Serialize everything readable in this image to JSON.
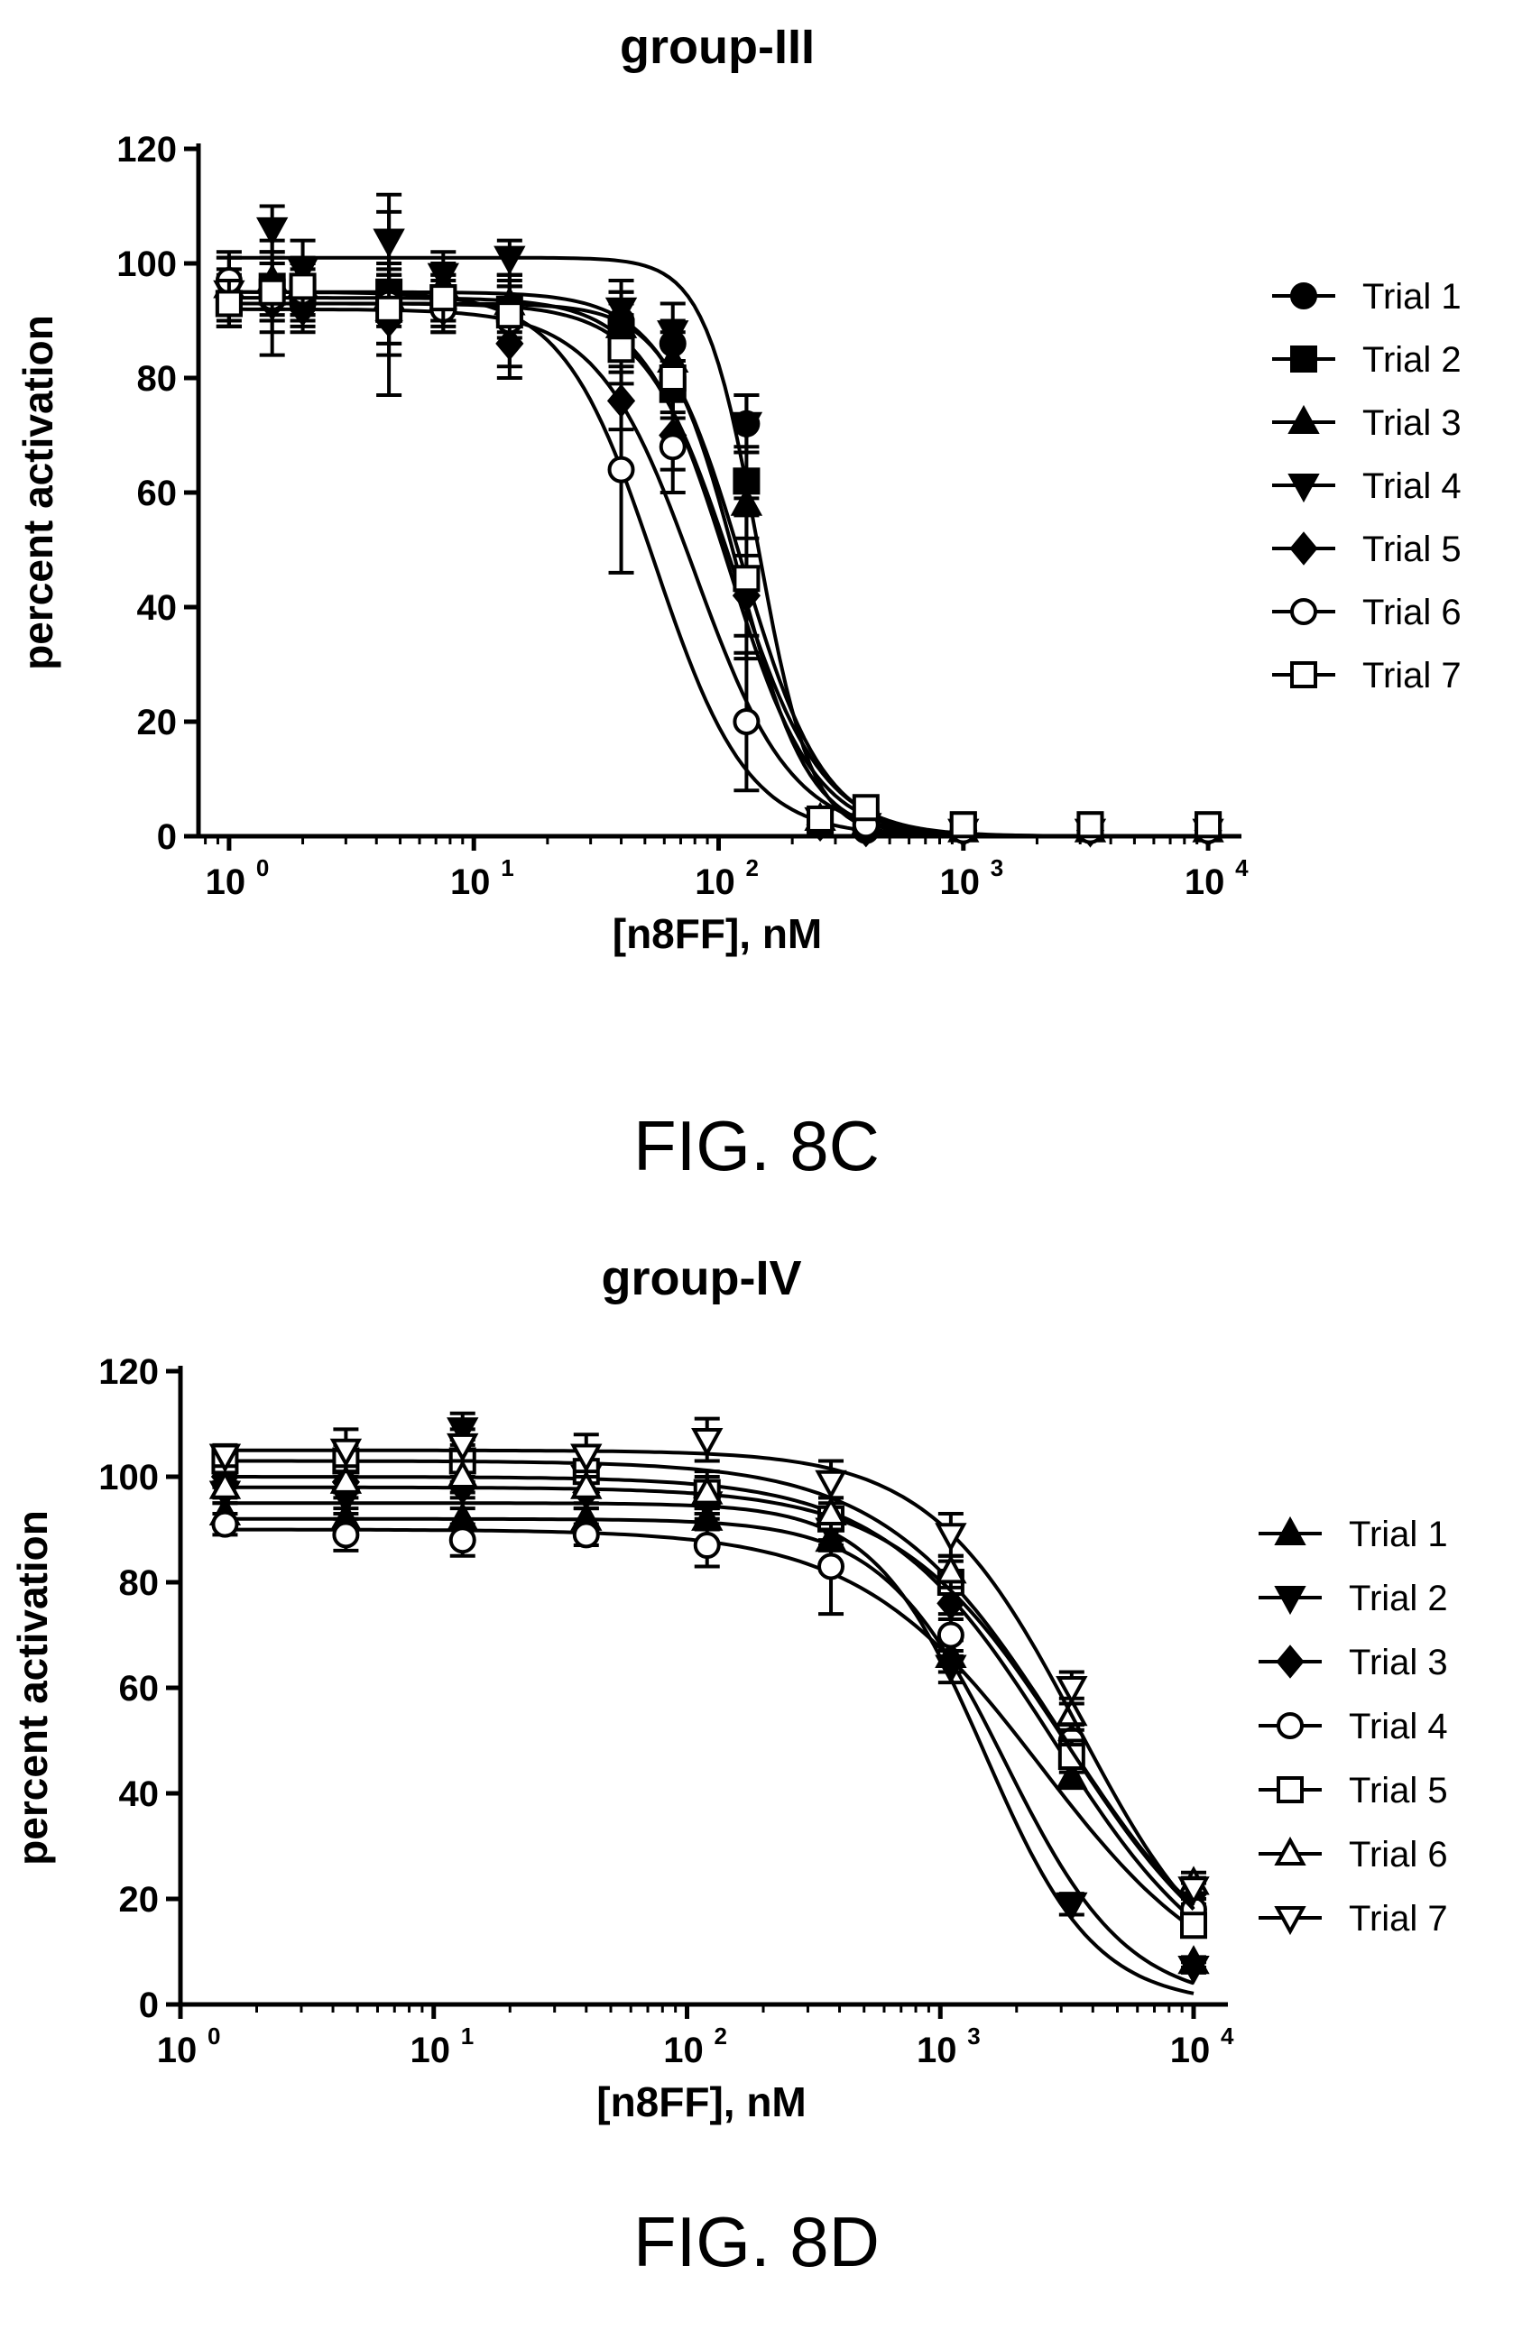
{
  "figures": [
    {
      "caption": "FIG. 8C"
    },
    {
      "caption": "FIG. 8D"
    }
  ],
  "chart_data": [
    {
      "type": "scatter",
      "title": "group-III",
      "xlabel": "[n8FF], nM",
      "ylabel": "percent activation",
      "xscale": "log",
      "xlim": [
        0.75,
        13000
      ],
      "ylim": [
        0,
        120
      ],
      "x_ticks": [
        {
          "base": "10",
          "exp": "0",
          "value": 1
        },
        {
          "base": "10",
          "exp": "1",
          "value": 10
        },
        {
          "base": "10",
          "exp": "2",
          "value": 100
        },
        {
          "base": "10",
          "exp": "3",
          "value": 1000
        },
        {
          "base": "10",
          "exp": "4",
          "value": 10000
        }
      ],
      "y_ticks": [
        "0",
        "20",
        "40",
        "60",
        "80",
        "100",
        "120"
      ],
      "legend_position": "right",
      "x": [
        1,
        1.5,
        2,
        4.5,
        7.5,
        14,
        40,
        65,
        130,
        260,
        400,
        1000,
        3300,
        10000
      ],
      "series": [
        {
          "name": "Trial 1",
          "marker": "filled-circle",
          "top": 93,
          "ec50": 120,
          "hill": 3.0,
          "values": [
            94,
            95,
            93,
            92,
            93,
            91,
            90,
            86,
            72,
            2,
            1,
            1,
            1,
            1
          ],
          "errors": [
            4,
            5,
            4,
            6,
            4,
            5,
            5,
            4,
            5,
            1,
            1,
            1,
            1,
            1
          ]
        },
        {
          "name": "Trial 2",
          "marker": "filled-square",
          "top": 95,
          "ec50": 125,
          "hill": 2.6,
          "values": [
            93,
            96,
            95,
            95,
            94,
            92,
            88,
            78,
            62,
            2,
            2,
            2,
            2,
            2
          ],
          "errors": [
            4,
            5,
            4,
            5,
            4,
            5,
            5,
            5,
            6,
            1,
            1,
            1,
            1,
            1
          ]
        },
        {
          "name": "Trial 3",
          "marker": "filled-triangle-up",
          "top": 94,
          "ec50": 110,
          "hill": 2.5,
          "values": [
            96,
            97,
            96,
            94,
            96,
            93,
            89,
            83,
            58,
            3,
            2,
            1,
            1,
            1
          ],
          "errors": [
            5,
            5,
            4,
            5,
            4,
            5,
            6,
            5,
            6,
            2,
            1,
            1,
            1,
            1
          ]
        },
        {
          "name": "Trial 4",
          "marker": "filled-triangle-down",
          "top": 101,
          "ec50": 145,
          "hill": 4.0,
          "values": [
            95,
            106,
            99,
            104,
            98,
            101,
            92,
            88,
            72,
            3,
            2,
            1,
            1,
            1
          ],
          "errors": [
            6,
            4,
            5,
            8,
            4,
            3,
            5,
            5,
            5,
            2,
            1,
            1,
            1,
            1
          ]
        },
        {
          "name": "Trial 5",
          "marker": "filled-diamond",
          "top": 92,
          "ec50": 80,
          "hill": 2.2,
          "values": [
            94,
            93,
            92,
            90,
            92,
            86,
            76,
            70,
            42,
            2,
            1,
            1,
            1,
            1
          ],
          "errors": [
            5,
            5,
            4,
            6,
            4,
            6,
            5,
            6,
            7,
            1,
            1,
            1,
            1,
            1
          ]
        },
        {
          "name": "Trial 6",
          "marker": "open-circle",
          "top": 95,
          "ec50": 55,
          "hill": 2.3,
          "values": [
            97,
            94,
            95,
            93,
            92,
            90,
            64,
            68,
            20,
            3,
            2,
            1,
            1,
            1
          ],
          "errors": [
            5,
            10,
            5,
            16,
            4,
            8,
            18,
            8,
            12,
            2,
            1,
            1,
            1,
            1
          ]
        },
        {
          "name": "Trial 7",
          "marker": "open-square",
          "top": 93,
          "ec50": 115,
          "hill": 2.4,
          "values": [
            93,
            95,
            96,
            92,
            94,
            91,
            85,
            80,
            45,
            3,
            5,
            2,
            2,
            2
          ],
          "errors": [
            4,
            5,
            5,
            6,
            4,
            5,
            6,
            6,
            14,
            2,
            2,
            1,
            1,
            1
          ]
        }
      ]
    },
    {
      "type": "scatter",
      "title": "group-IV",
      "xlabel": "[n8FF], nM",
      "ylabel": "percent activation",
      "xscale": "log",
      "xlim": [
        1,
        13000
      ],
      "ylim": [
        0,
        120
      ],
      "x_ticks": [
        {
          "base": "10",
          "exp": "0",
          "value": 1
        },
        {
          "base": "10",
          "exp": "1",
          "value": 10
        },
        {
          "base": "10",
          "exp": "2",
          "value": 100
        },
        {
          "base": "10",
          "exp": "3",
          "value": 1000
        },
        {
          "base": "10",
          "exp": "4",
          "value": 10000
        }
      ],
      "y_ticks": [
        "0",
        "20",
        "40",
        "60",
        "80",
        "100",
        "120"
      ],
      "legend_position": "right",
      "x": [
        1.5,
        4.5,
        13,
        40,
        120,
        370,
        1100,
        3300,
        10000
      ],
      "series": [
        {
          "name": "Trial 1",
          "marker": "filled-triangle-up",
          "top": 92,
          "ec50": 1800,
          "hill": 1.8,
          "values": [
            93,
            92,
            92,
            92,
            92,
            88,
            66,
            43,
            8
          ],
          "errors": [
            2,
            2,
            2,
            2,
            2,
            2,
            3,
            2,
            1
          ]
        },
        {
          "name": "Trial 2",
          "marker": "filled-triangle-down",
          "top": 95,
          "ec50": 1500,
          "hill": 2.0,
          "values": [
            97,
            96,
            109,
            100,
            95,
            90,
            64,
            19,
            7
          ],
          "errors": [
            2,
            3,
            3,
            3,
            3,
            3,
            3,
            2,
            1
          ]
        },
        {
          "name": "Trial 3",
          "marker": "filled-diamond",
          "top": 100,
          "ec50": 2800,
          "hill": 1.3,
          "values": [
            100,
            99,
            98,
            97,
            96,
            91,
            76,
            50,
            21
          ],
          "errors": [
            2,
            2,
            2,
            3,
            3,
            3,
            3,
            3,
            2
          ]
        },
        {
          "name": "Trial 4",
          "marker": "open-circle",
          "top": 90,
          "ec50": 2500,
          "hill": 1.2,
          "values": [
            91,
            89,
            88,
            89,
            87,
            83,
            70,
            50,
            18
          ],
          "errors": [
            2,
            3,
            3,
            2,
            4,
            9,
            4,
            3,
            2
          ]
        },
        {
          "name": "Trial 5",
          "marker": "open-square",
          "top": 103,
          "ec50": 3000,
          "hill": 1.25,
          "values": [
            103,
            103,
            103,
            101,
            97,
            92,
            80,
            47,
            15
          ],
          "errors": [
            2,
            3,
            4,
            4,
            4,
            4,
            4,
            3,
            2
          ]
        },
        {
          "name": "Trial 6",
          "marker": "open-triangle-up",
          "top": 98,
          "ec50": 3200,
          "hill": 1.3,
          "values": [
            98,
            99,
            100,
            98,
            97,
            93,
            82,
            55,
            23
          ],
          "errors": [
            2,
            3,
            3,
            3,
            3,
            3,
            3,
            3,
            2
          ]
        },
        {
          "name": "Trial 7",
          "marker": "open-triangle-down",
          "top": 105,
          "ec50": 3500,
          "hill": 1.5,
          "values": [
            104,
            105,
            106,
            104,
            107,
            99,
            89,
            60,
            22
          ],
          "errors": [
            2,
            4,
            3,
            4,
            4,
            4,
            4,
            3,
            2
          ]
        }
      ]
    }
  ]
}
